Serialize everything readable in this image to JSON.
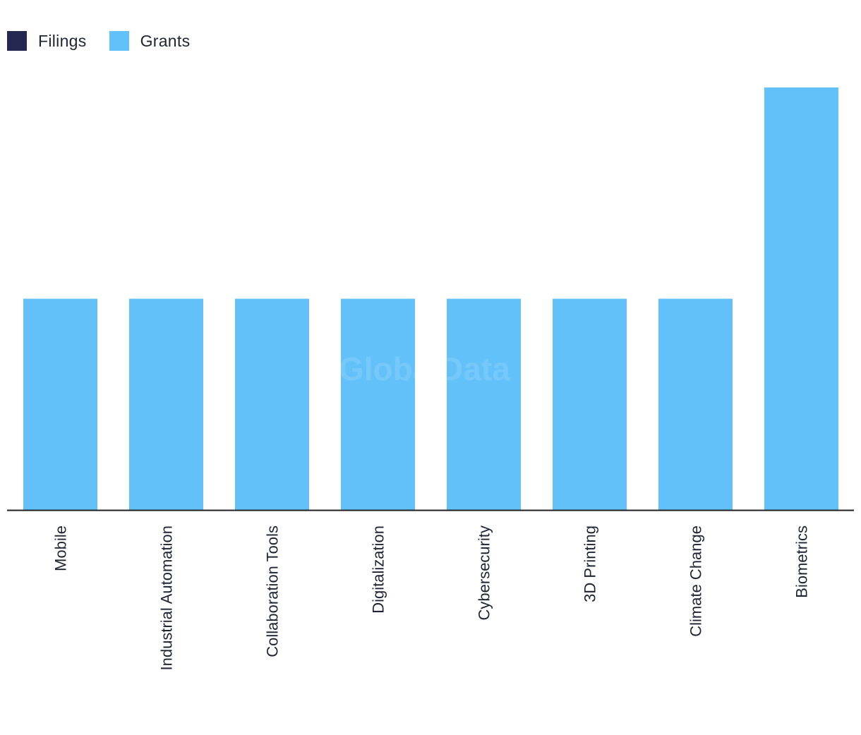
{
  "legend": {
    "filings": {
      "label": "Filings",
      "color": "#252850"
    },
    "grants": {
      "label": "Grants",
      "color": "#62c1f8"
    }
  },
  "watermark": "GlobalData",
  "chart_data": {
    "type": "bar",
    "categories": [
      "Mobile",
      "Industrial Automation",
      "Collaboration Tools",
      "Digitalization",
      "Cybersecurity",
      "3D Printing",
      "Climate Change",
      "Biometrics"
    ],
    "series": [
      {
        "name": "Filings",
        "values": [
          0,
          0,
          0,
          0,
          0,
          0,
          0,
          0
        ]
      },
      {
        "name": "Grants",
        "values": [
          1,
          1,
          1,
          1,
          1,
          1,
          1,
          2
        ]
      }
    ],
    "ylim": [
      0,
      2
    ],
    "grid": false,
    "legend_position": "top-left"
  }
}
